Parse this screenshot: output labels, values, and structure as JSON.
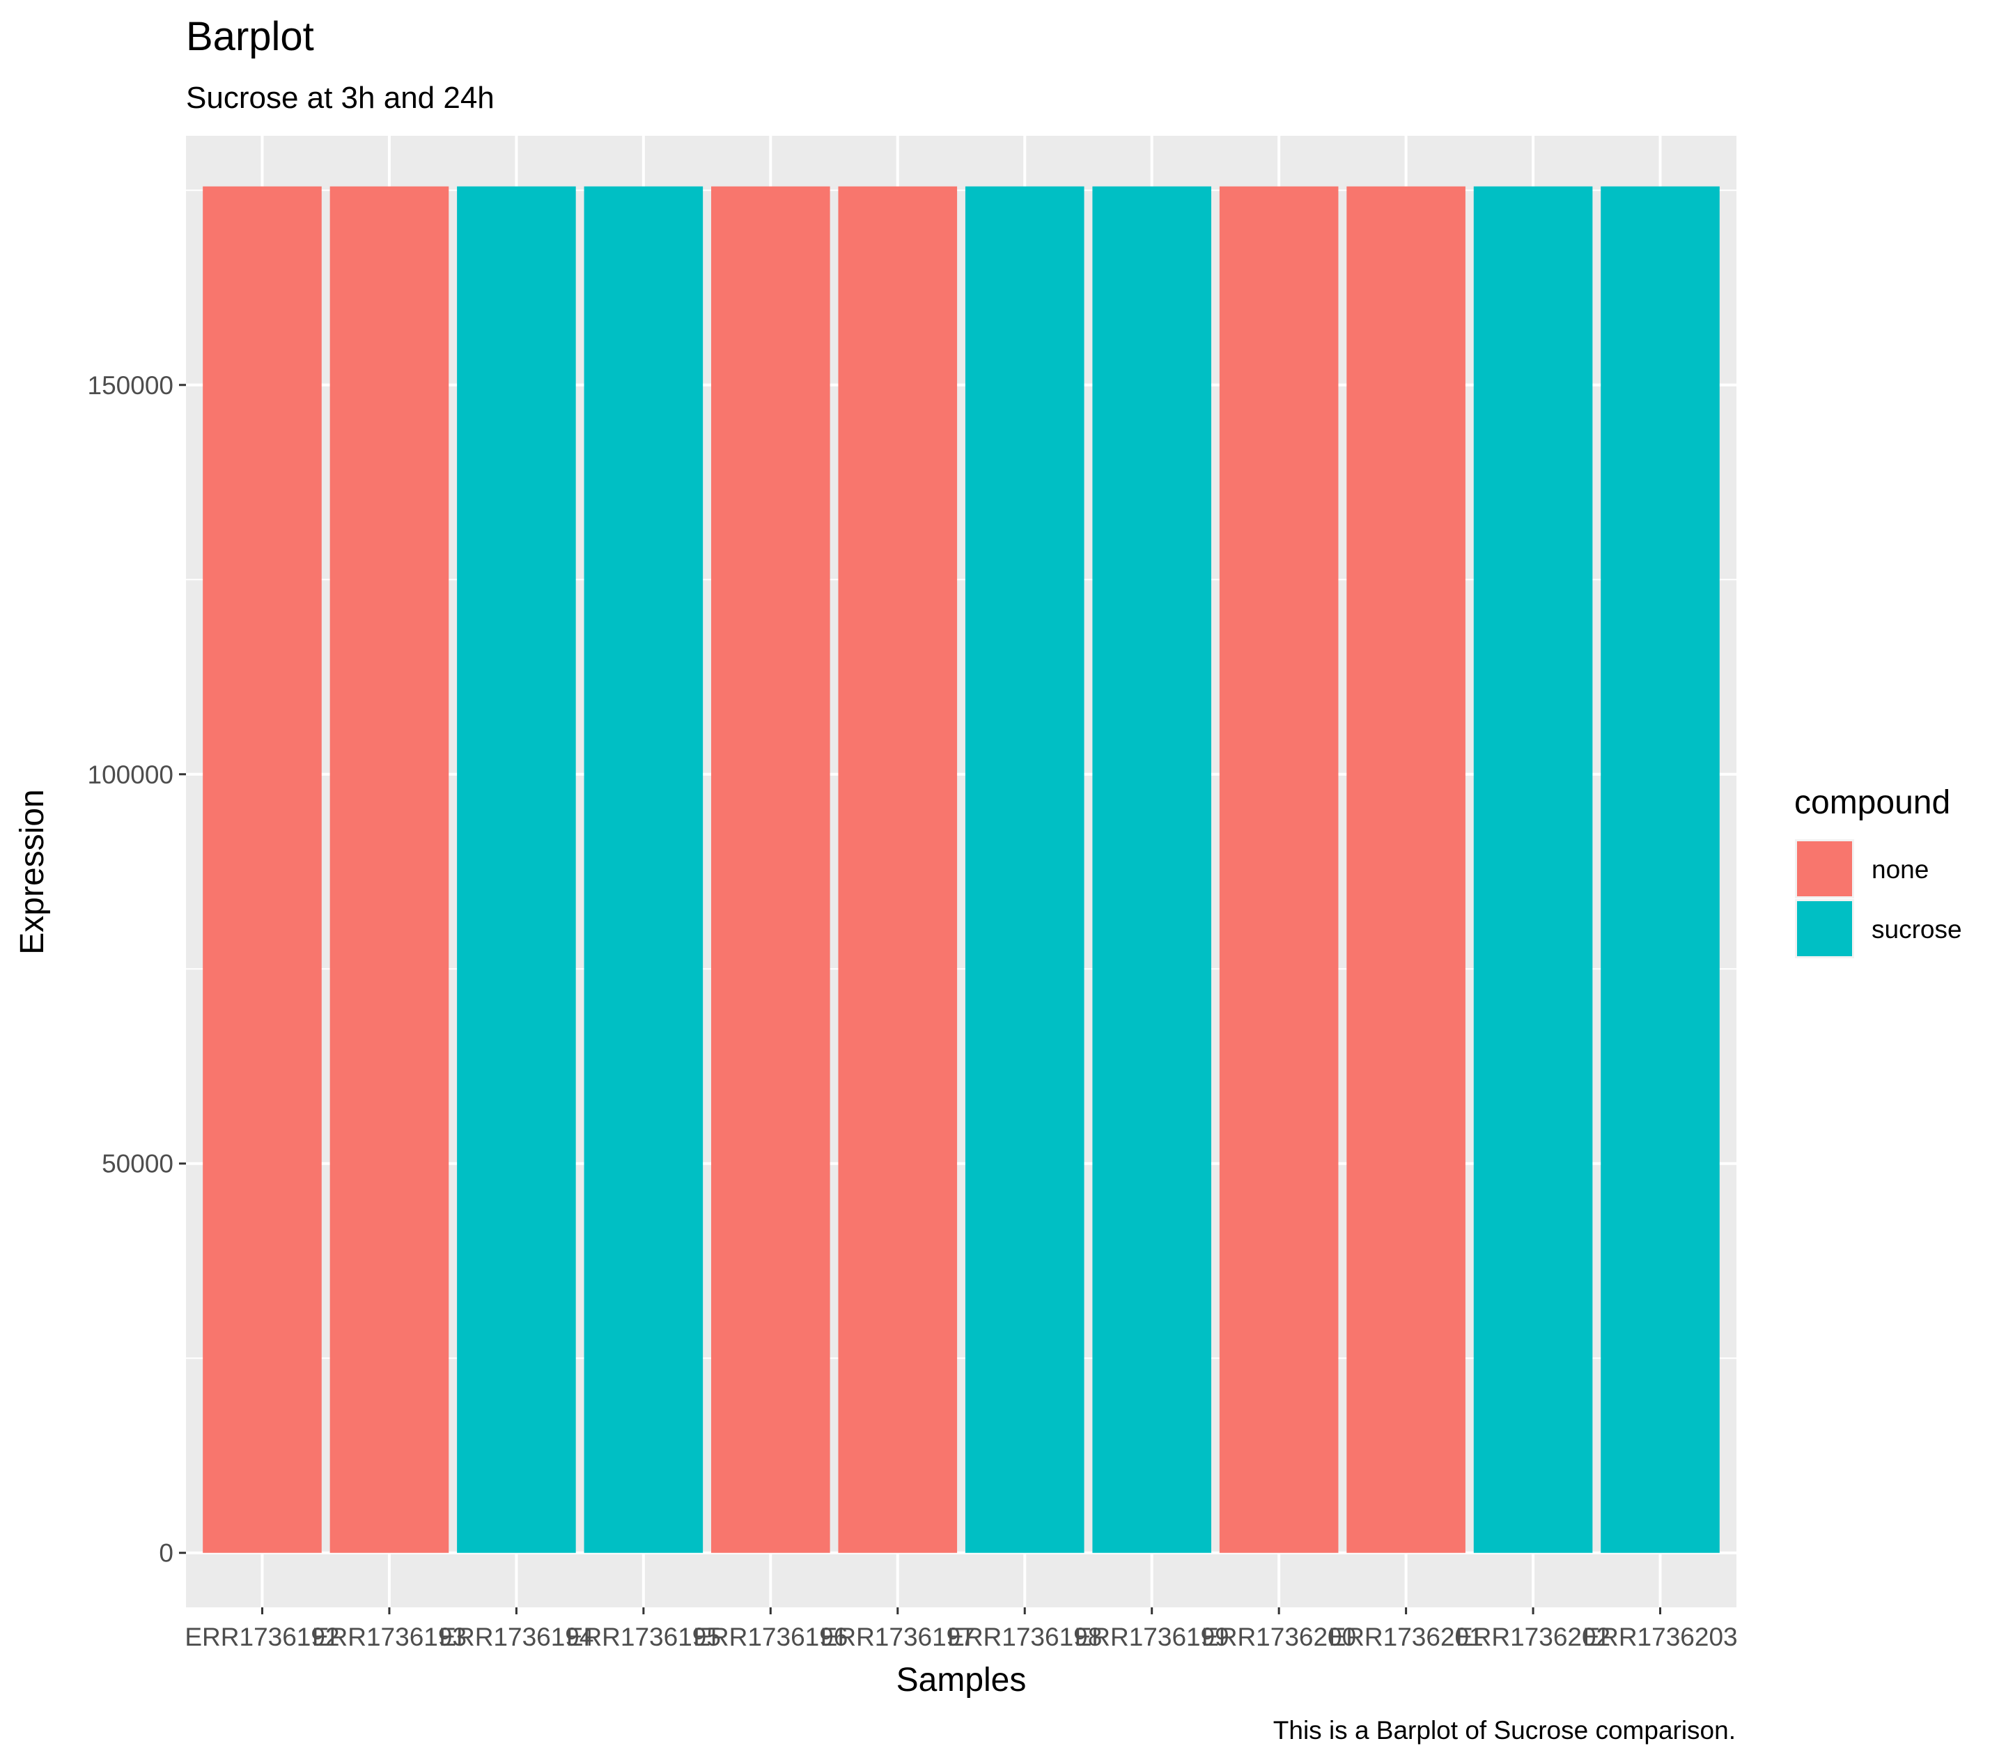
{
  "chart_data": {
    "type": "bar",
    "title": "Barplot",
    "subtitle": "Sucrose at 3h and 24h",
    "caption": "This is a Barplot of Sucrose comparison.",
    "xlabel": "Samples",
    "ylabel": "Expression",
    "ylim": [
      -7000,
      182000
    ],
    "yticks": [
      0,
      50000,
      100000,
      150000
    ],
    "ytick_labels": [
      "0",
      "50000",
      "100000",
      "150000"
    ],
    "grid": true,
    "legend": {
      "title": "compound",
      "position": "right",
      "items": [
        {
          "label": "none",
          "color": "#F8766D"
        },
        {
          "label": "sucrose",
          "color": "#00BFC4"
        }
      ]
    },
    "categories": [
      "ERR1736192",
      "ERR1736193",
      "ERR1736194",
      "ERR1736195",
      "ERR1736196",
      "ERR1736197",
      "ERR1736198",
      "ERR1736199",
      "ERR1736200",
      "ERR1736201",
      "ERR1736202",
      "ERR1736203"
    ],
    "values": [
      175500,
      175500,
      175500,
      175500,
      175500,
      175500,
      175500,
      175500,
      175500,
      175500,
      175500,
      175500
    ],
    "groups": [
      "none",
      "none",
      "sucrose",
      "sucrose",
      "none",
      "none",
      "sucrose",
      "sucrose",
      "none",
      "none",
      "sucrose",
      "sucrose"
    ]
  }
}
